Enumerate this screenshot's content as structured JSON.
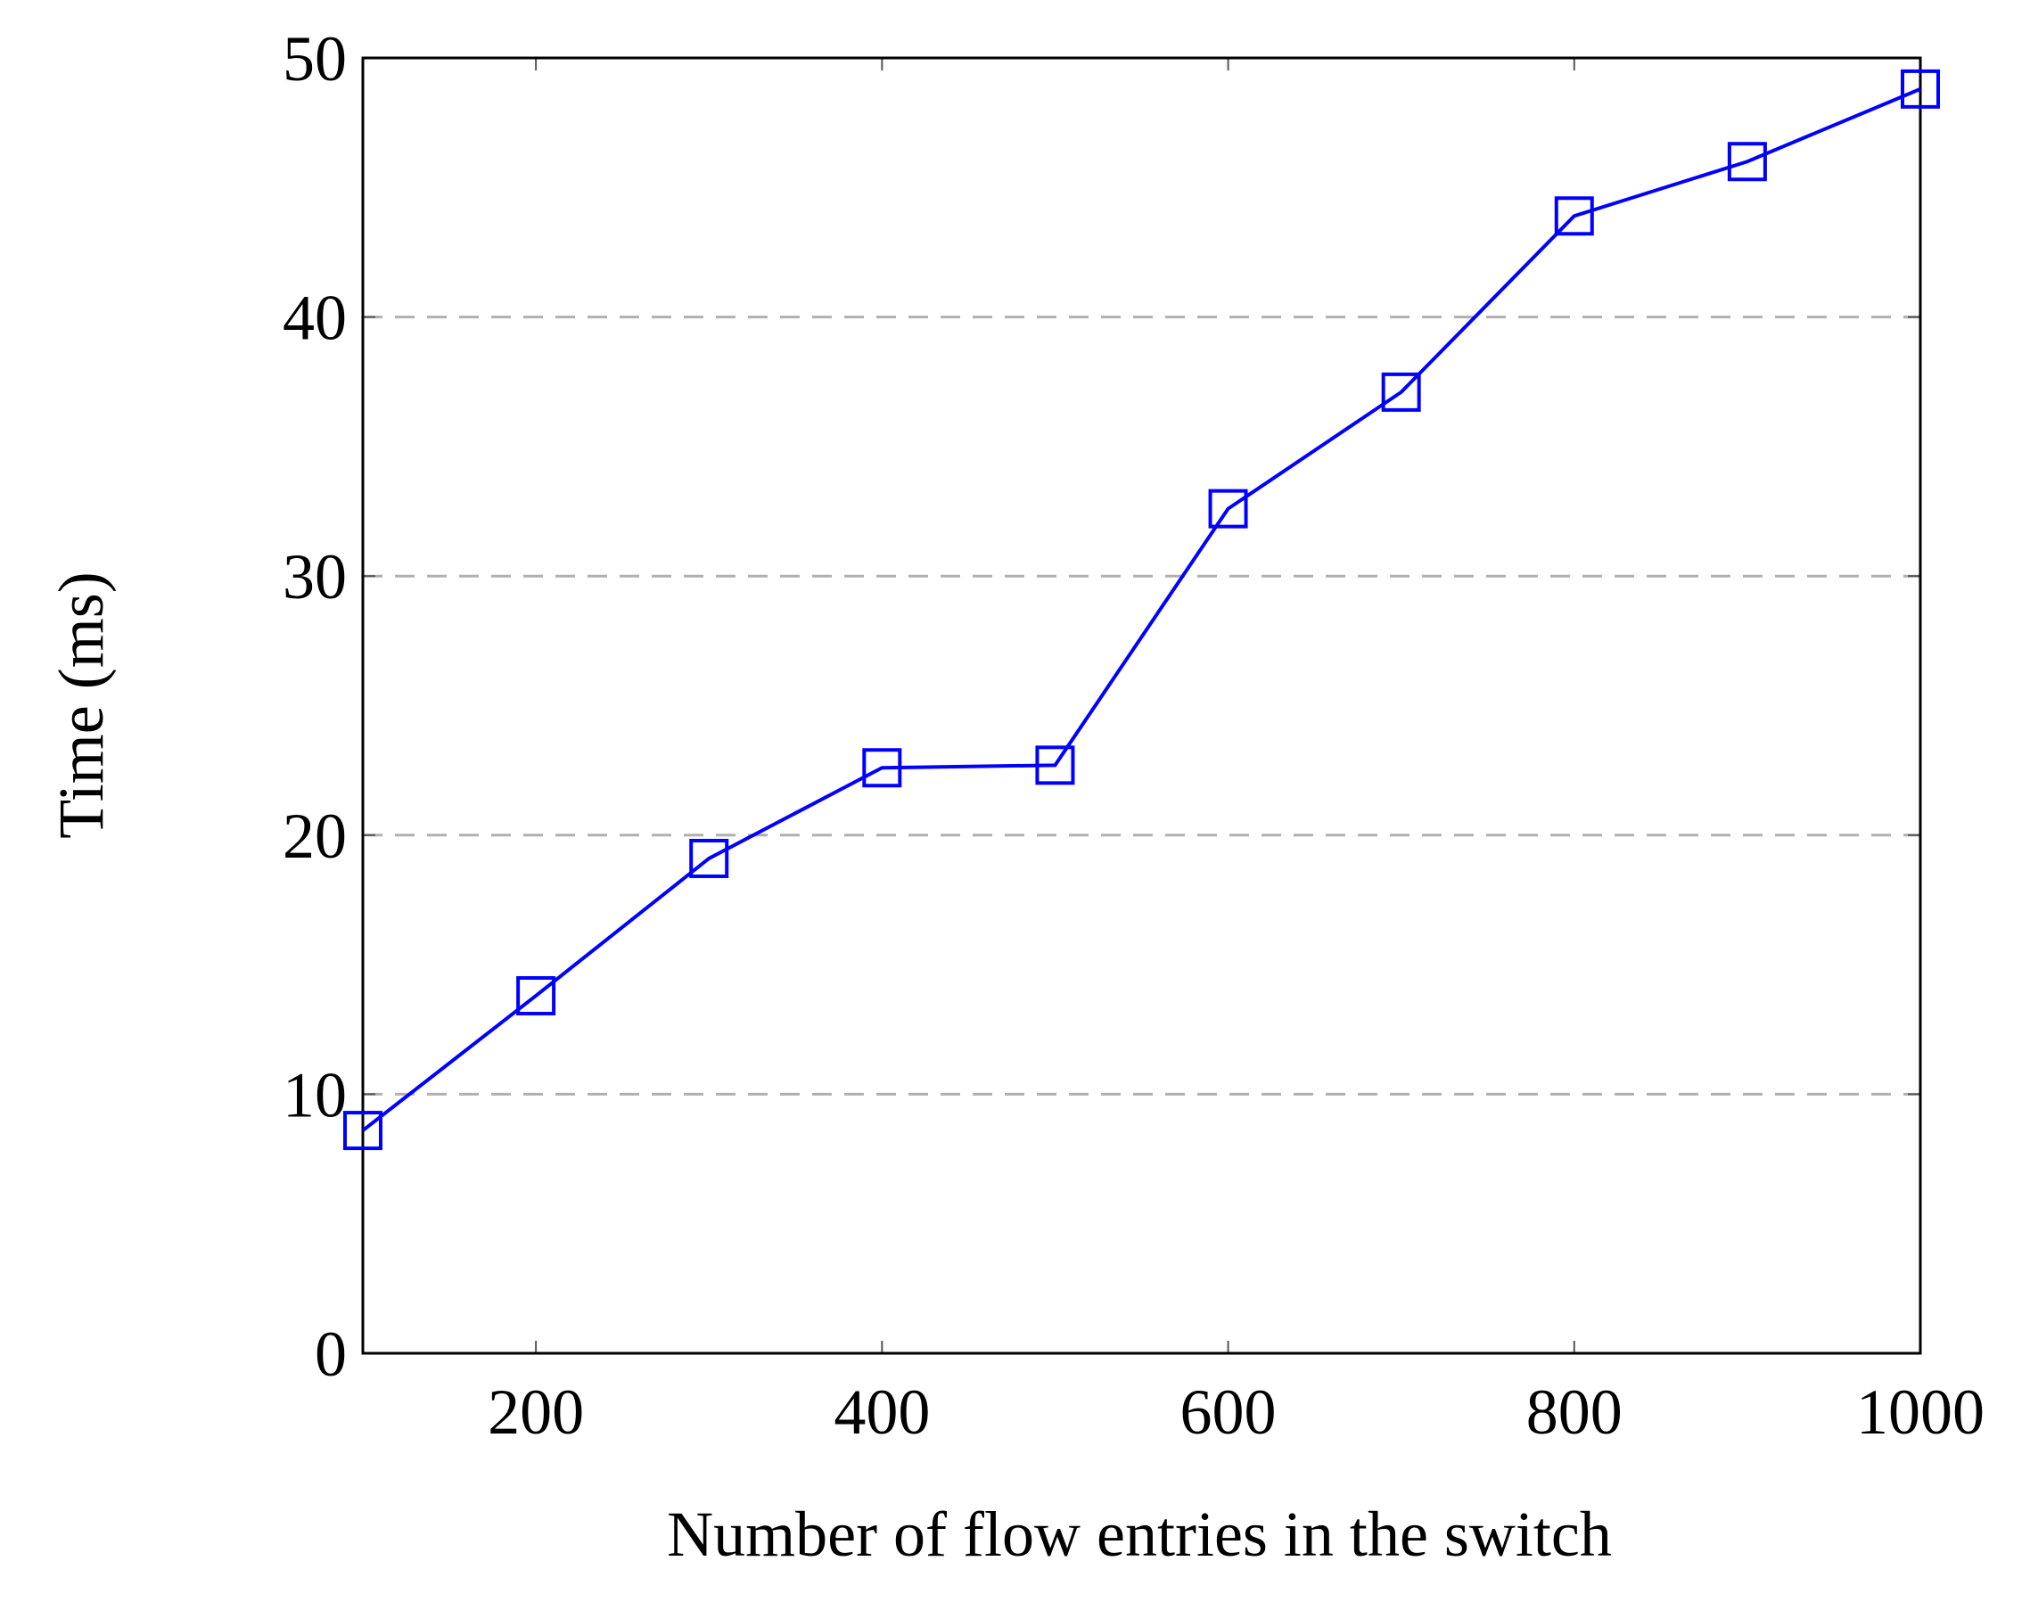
{
  "chart_data": {
    "type": "line",
    "x_label": "Number of flow entries in the switch",
    "y_label": "Time (ms)",
    "x": [
      100,
      200,
      300,
      400,
      500,
      600,
      700,
      800,
      900,
      1000
    ],
    "series": [
      {
        "color": "#0000ff",
        "marker": "square",
        "values": [
          8.6,
          13.8,
          19.1,
          22.6,
          22.7,
          32.6,
          37.1,
          43.9,
          46.0,
          48.8
        ]
      }
    ],
    "xlim": [
      100,
      1000
    ],
    "xticks": [
      200,
      400,
      600,
      800,
      1000
    ],
    "ylim": [
      0,
      50
    ],
    "yticks": [
      0,
      10,
      20,
      30,
      40,
      50
    ],
    "grid": "y"
  }
}
